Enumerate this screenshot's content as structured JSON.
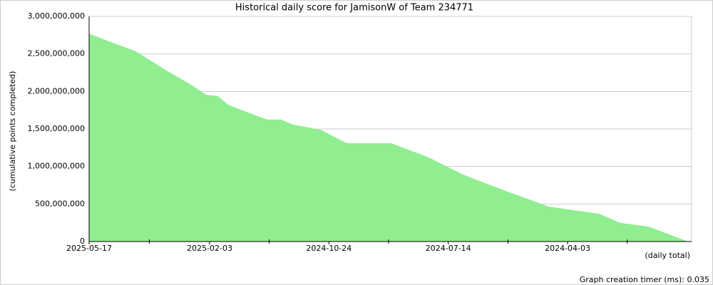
{
  "chart_data": {
    "type": "area",
    "title": "Historical daily score for JamisonW of Team 234771",
    "y_label": "(cumulative points completed)",
    "x_label": "(daily total)",
    "footer": "Graph creation timer (ms): 0.035",
    "color": "#90ee90",
    "grid": true,
    "xlim": [
      "2025-05-17",
      "2023-12-19"
    ],
    "xticks": [
      "2025-05-17",
      "2025-02-03",
      "2024-10-24",
      "2024-07-14",
      "2024-04-03"
    ],
    "ylim": [
      0,
      3000000000
    ],
    "yticks": [
      0,
      {
        "value": 500000000,
        "label": "500,000,000"
      },
      {
        "value": 1000000000,
        "label": "1,000,000,000"
      },
      {
        "value": 1500000000,
        "label": "1,500,000,000"
      },
      {
        "value": 2000000000,
        "label": "2,000,000,000"
      },
      {
        "value": 2500000000,
        "label": "2,500,000,000"
      },
      {
        "value": 3000000000,
        "label": "3,000,000,000"
      }
    ],
    "x": [
      "2025-05-17",
      "2025-05-02",
      "2025-04-07",
      "2025-03-14",
      "2025-02-18",
      "2025-02-06",
      "2025-01-27",
      "2025-01-18",
      "2025-01-03",
      "2024-12-16",
      "2024-12-04",
      "2024-11-24",
      "2024-10-31",
      "2024-10-10",
      "2024-10-07",
      "2024-09-01",
      "2024-08-01",
      "2024-07-01",
      "2024-05-26",
      "2024-04-19",
      "2024-03-07",
      "2024-02-18",
      "2024-01-25",
      "2023-12-22"
    ],
    "values": [
      2770000000,
      2680000000,
      2535000000,
      2300000000,
      2080000000,
      1955000000,
      1940000000,
      1820000000,
      1730000000,
      1625000000,
      1625000000,
      1560000000,
      1490000000,
      1320000000,
      1310000000,
      1310000000,
      1130000000,
      890000000,
      675000000,
      465000000,
      370000000,
      250000000,
      200000000,
      0
    ]
  }
}
